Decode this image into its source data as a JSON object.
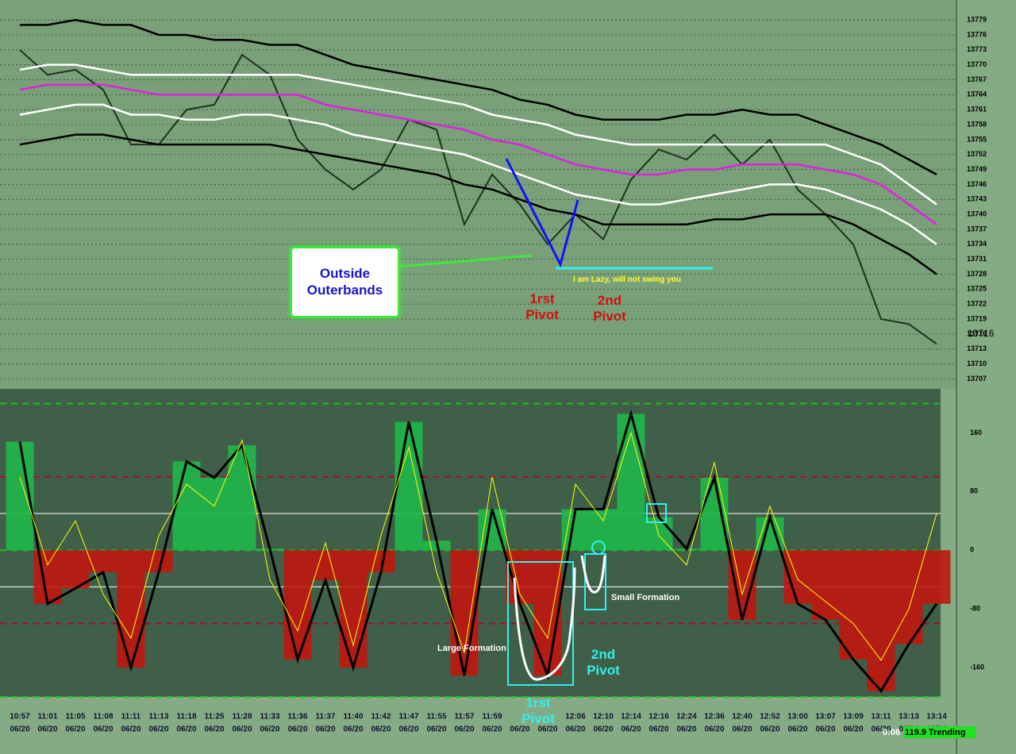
{
  "chart_data": [
    {
      "type": "line",
      "series": [
        {
          "color": "#1e301e",
          "values": [
            13773,
            13768,
            13769,
            13765,
            13754,
            13754,
            13761,
            13762,
            13772,
            13768,
            13755,
            13749,
            13745,
            13749,
            13759,
            13757,
            13738,
            13748,
            13742,
            13734,
            13740,
            13735,
            13747,
            13753,
            13751,
            13756,
            13750,
            13755,
            13745,
            13740,
            13734,
            13719,
            13718,
            13714
          ]
        },
        {
          "color": "#000000",
          "values": [
            13778,
            13778,
            13779,
            13778,
            13778,
            13776,
            13776,
            13775,
            13775,
            13774,
            13774,
            13772,
            13770,
            13769,
            13768,
            13767,
            13766,
            13765,
            13763,
            13762,
            13760,
            13759,
            13759,
            13759,
            13760,
            13760,
            13761,
            13760,
            13760,
            13758,
            13756,
            13754,
            13751,
            13748
          ]
        },
        {
          "color": "#ffffff",
          "values": [
            13769,
            13770,
            13770,
            13769,
            13768,
            13768,
            13768,
            13768,
            13768,
            13768,
            13768,
            13767,
            13766,
            13765,
            13764,
            13763,
            13762,
            13760,
            13759,
            13758,
            13756,
            13755,
            13754,
            13754,
            13754,
            13754,
            13754,
            13754,
            13754,
            13754,
            13752,
            13750,
            13746,
            13742
          ]
        },
        {
          "color": "#e020e0",
          "values": [
            13765,
            13766,
            13766,
            13766,
            13765,
            13764,
            13764,
            13764,
            13764,
            13764,
            13764,
            13762,
            13761,
            13760,
            13759,
            13758,
            13757,
            13755,
            13754,
            13752,
            13750,
            13749,
            13748,
            13748,
            13749,
            13749,
            13750,
            13750,
            13750,
            13749,
            13748,
            13746,
            13742,
            13738
          ]
        },
        {
          "color": "#ffffff",
          "values": [
            13760,
            13761,
            13762,
            13762,
            13760,
            13760,
            13759,
            13759,
            13760,
            13760,
            13759,
            13758,
            13756,
            13755,
            13754,
            13753,
            13752,
            13750,
            13748,
            13746,
            13744,
            13743,
            13742,
            13742,
            13743,
            13744,
            13745,
            13746,
            13746,
            13745,
            13743,
            13741,
            13738,
            13734
          ]
        },
        {
          "color": "#000000",
          "values": [
            13754,
            13755,
            13756,
            13756,
            13755,
            13754,
            13754,
            13754,
            13754,
            13754,
            13753,
            13752,
            13751,
            13750,
            13749,
            13748,
            13746,
            13745,
            13743,
            13741,
            13740,
            13738,
            13738,
            13738,
            13738,
            13739,
            13739,
            13740,
            13740,
            13740,
            13738,
            13735,
            13732,
            13728
          ]
        }
      ],
      "ylim": [
        13705,
        13783
      ],
      "yticks": [
        13707,
        13710,
        13713,
        13716,
        13719,
        13722,
        13725,
        13728,
        13731,
        13734,
        13737,
        13740,
        13743,
        13746,
        13749,
        13752,
        13755,
        13758,
        13761,
        13764,
        13767,
        13770,
        13773,
        13776,
        13779
      ],
      "grid": true,
      "last_price": 13716,
      "annotations": [
        "Outside Outerbands",
        "1rst Pivot",
        "2nd Pivot",
        "I am Lazy, will not swing you"
      ]
    },
    {
      "type": "oscillator",
      "categories": [
        "10:57",
        "11:01",
        "11:05",
        "11:08",
        "11:11",
        "11:13",
        "11:18",
        "11:25",
        "11:28",
        "11:33",
        "11:36",
        "11:37",
        "11:40",
        "11:42",
        "11:47",
        "11:55",
        "11:57",
        "11:59",
        null,
        null,
        "12:06",
        "12:10",
        "12:14",
        "12:16",
        "12:24",
        "12:36",
        "12:40",
        "12:52",
        "13:00",
        "13:07",
        "13:09",
        "13:11",
        "13:13",
        "13:14"
      ],
      "date_label": "06/20",
      "series": [
        {
          "color": "#000000",
          "values": [
            148,
            -73,
            -52,
            -30,
            -160,
            -30,
            121,
            99,
            143,
            2,
            -149,
            -41,
            -160,
            -30,
            175,
            13,
            -171,
            56,
            -73,
            -171,
            56,
            56,
            186,
            45,
            2,
            99,
            -95,
            45,
            -73,
            -95,
            -149,
            -192,
            -128,
            -73
          ]
        },
        {
          "color": "#ffff00",
          "values": [
            100,
            -20,
            40,
            -60,
            -120,
            20,
            90,
            60,
            150,
            -40,
            -110,
            10,
            -130,
            20,
            140,
            -30,
            -140,
            100,
            -60,
            -120,
            90,
            40,
            160,
            20,
            -20,
            120,
            -60,
            60,
            -40,
            -70,
            -100,
            -150,
            -80,
            50
          ]
        }
      ],
      "positive_color": "#1fb84a",
      "negative_color": "#c0160e",
      "ylim": [
        -200,
        220
      ],
      "yticks": [
        -160,
        -80,
        0,
        80,
        160
      ],
      "levels": [
        200,
        100,
        50,
        0,
        -50,
        -100,
        -200
      ],
      "level_colors": [
        "#20c020",
        "#a01030",
        "#ffffff",
        "#20c020",
        "#ffffff",
        "#a01030",
        "#20c020"
      ],
      "annotations": [
        "Large Formation",
        "Small Formation",
        "2nd Pivot",
        "1rst Pivot"
      ]
    }
  ],
  "status": {
    "timer": "0:08",
    "trend": "119.9 Trending"
  }
}
